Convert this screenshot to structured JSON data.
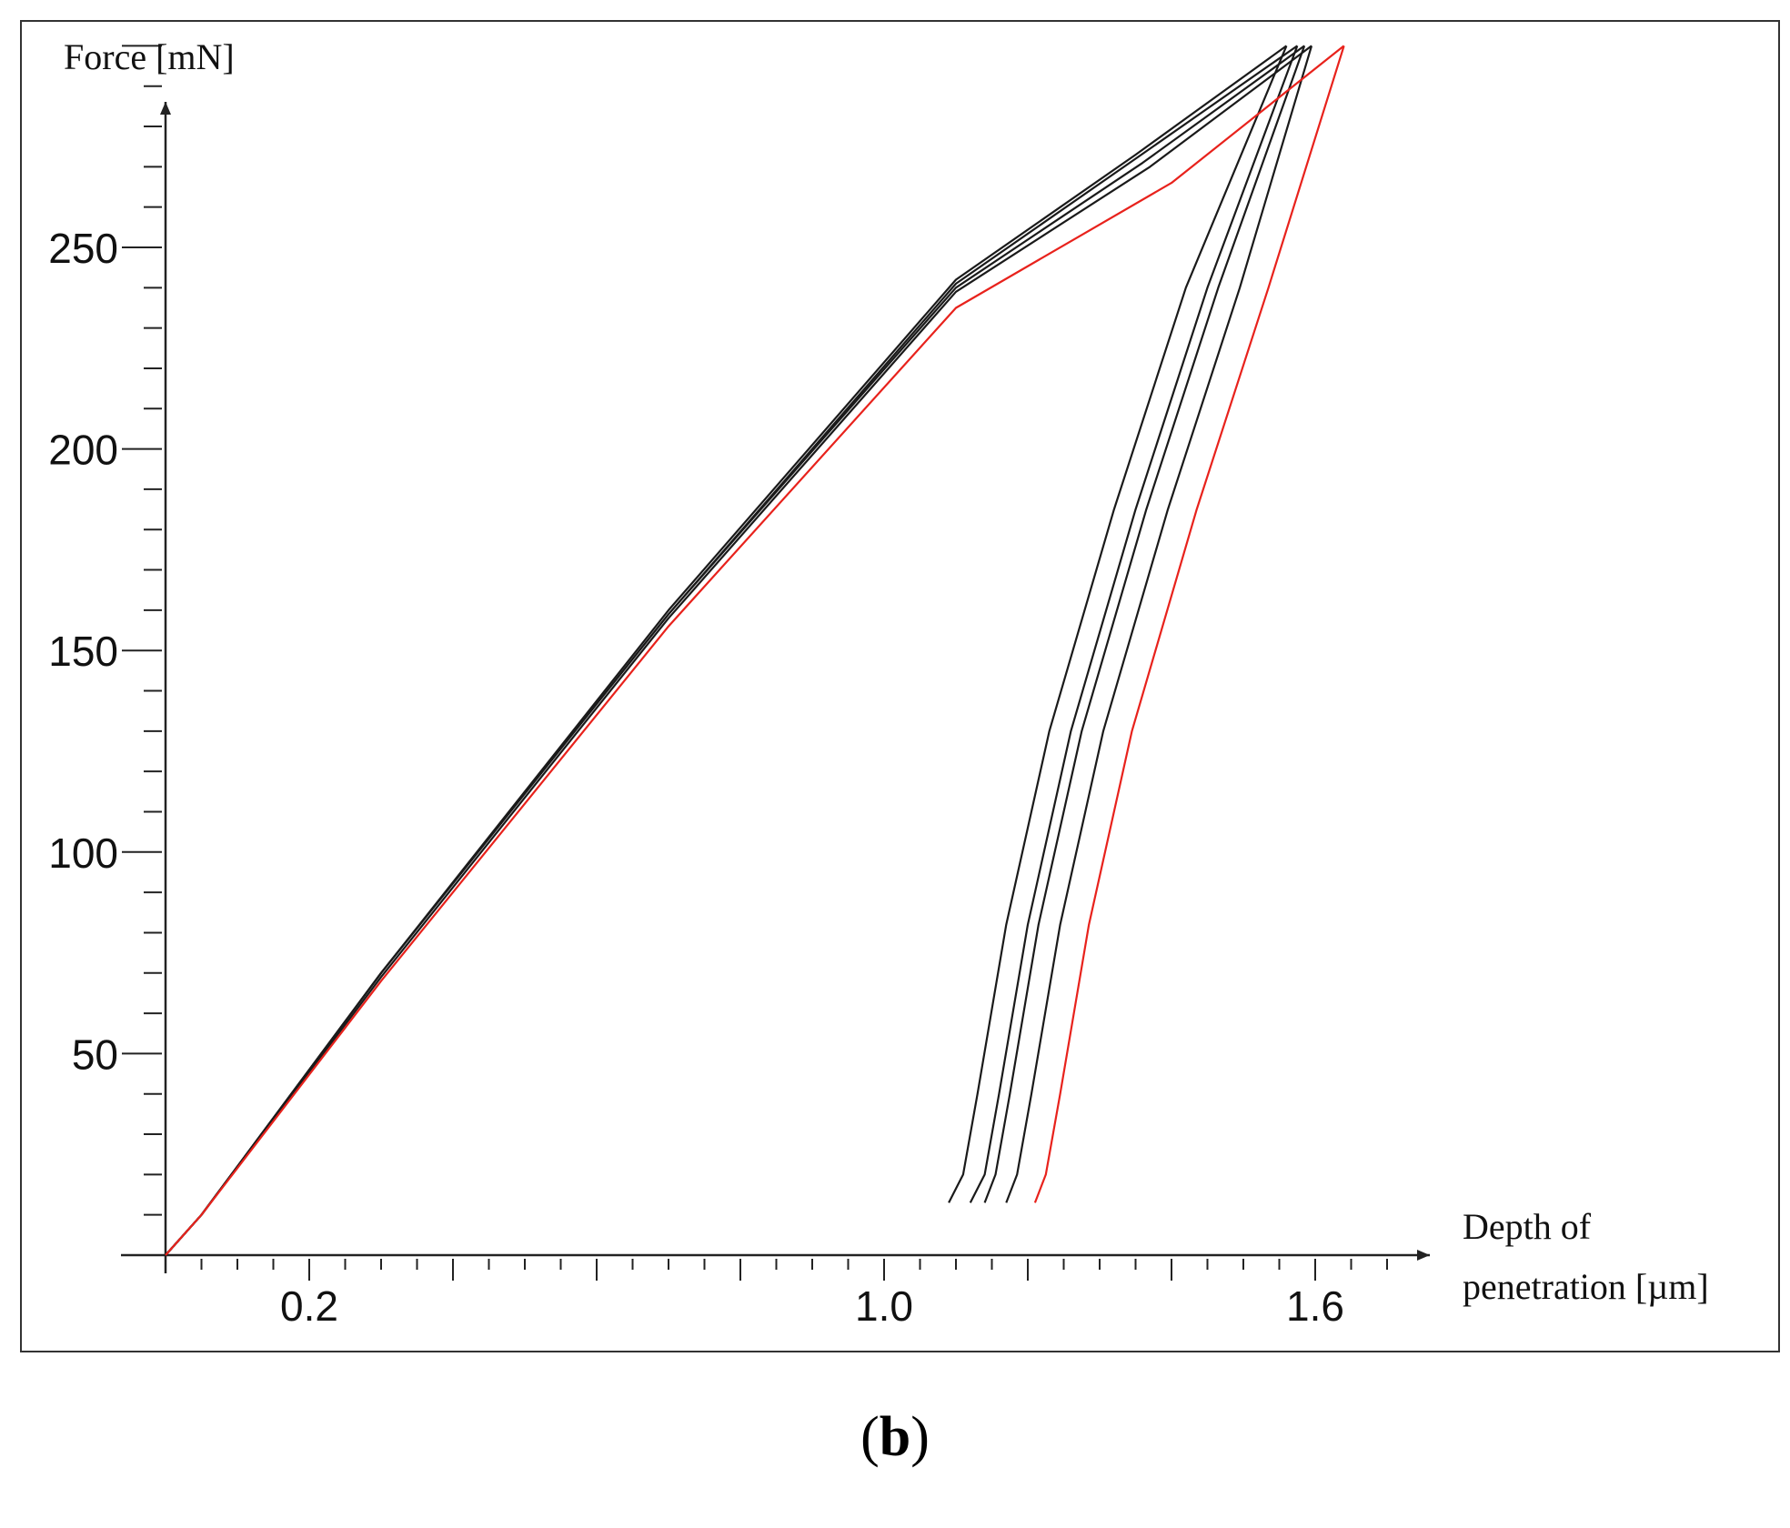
{
  "chart_data": {
    "type": "line",
    "xlabel_line1": "Depth of",
    "xlabel_line2": "penetration [µm]",
    "ylabel": "Force [mN]",
    "x_ticks": [
      "0.2",
      "1.0",
      "1.6"
    ],
    "y_ticks": [
      "50",
      "100",
      "150",
      "200",
      "250"
    ],
    "xlim": [
      0,
      1.75
    ],
    "ylim": [
      0,
      300
    ],
    "colors": {
      "black": "#1a1a1a",
      "red": "#e8221c"
    },
    "series": [
      {
        "color": "black",
        "x": [
          0,
          0.05,
          0.3,
          0.7,
          1.1,
          1.35,
          1.56,
          1.09,
          1.11,
          1.13,
          1.17,
          1.23,
          1.32,
          1.42,
          1.56
        ],
        "y": [
          0,
          10,
          70,
          160,
          242,
          273,
          300,
          13,
          20,
          40,
          82,
          130,
          185,
          240,
          300
        ]
      },
      {
        "color": "black",
        "x": [
          0,
          0.05,
          0.3,
          0.7,
          1.1,
          1.35,
          1.575,
          1.12,
          1.14,
          1.16,
          1.2,
          1.26,
          1.35,
          1.45,
          1.575
        ],
        "y": [
          0,
          10,
          70,
          159,
          241,
          272,
          300,
          13,
          20,
          40,
          82,
          130,
          185,
          240,
          300
        ]
      },
      {
        "color": "black",
        "x": [
          0,
          0.05,
          0.3,
          0.7,
          1.1,
          1.36,
          1.585,
          1.14,
          1.155,
          1.175,
          1.215,
          1.275,
          1.365,
          1.465,
          1.585
        ],
        "y": [
          0,
          10,
          70,
          159,
          240,
          271,
          300,
          13,
          20,
          40,
          82,
          130,
          185,
          240,
          300
        ]
      },
      {
        "color": "black",
        "x": [
          0,
          0.05,
          0.3,
          0.7,
          1.1,
          1.37,
          1.595,
          1.17,
          1.185,
          1.205,
          1.245,
          1.305,
          1.395,
          1.495,
          1.595
        ],
        "y": [
          0,
          10,
          69,
          158,
          239,
          270,
          300,
          13,
          20,
          40,
          82,
          130,
          185,
          240,
          300
        ]
      },
      {
        "color": "red",
        "x": [
          0,
          0.05,
          0.3,
          0.7,
          1.1,
          1.4,
          1.64,
          1.21,
          1.225,
          1.245,
          1.285,
          1.345,
          1.435,
          1.535,
          1.64
        ],
        "y": [
          0,
          10,
          68,
          156,
          235,
          266,
          300,
          13,
          20,
          40,
          82,
          130,
          185,
          240,
          300
        ]
      }
    ]
  },
  "caption": "(b)"
}
